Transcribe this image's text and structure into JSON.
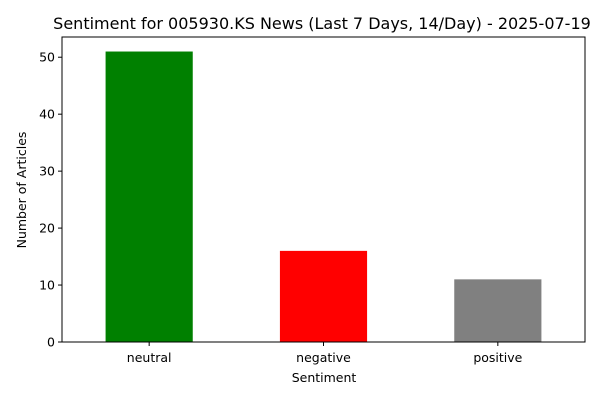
{
  "chart_data": {
    "type": "bar",
    "title": "Sentiment for 005930.KS News (Last 7 Days, 14/Day) - 2025-07-19",
    "xlabel": "Sentiment",
    "ylabel": "Number of Articles",
    "categories": [
      "neutral",
      "negative",
      "positive"
    ],
    "values": [
      51,
      16,
      11
    ],
    "colors": [
      "#008000",
      "#ff0000",
      "#808080"
    ],
    "ylim": [
      0,
      53.55
    ],
    "yticks": [
      0,
      10,
      20,
      30,
      40,
      50
    ],
    "ytick_labels": [
      "0",
      "10",
      "20",
      "30",
      "40",
      "50"
    ],
    "grid": false,
    "legend": "none"
  }
}
